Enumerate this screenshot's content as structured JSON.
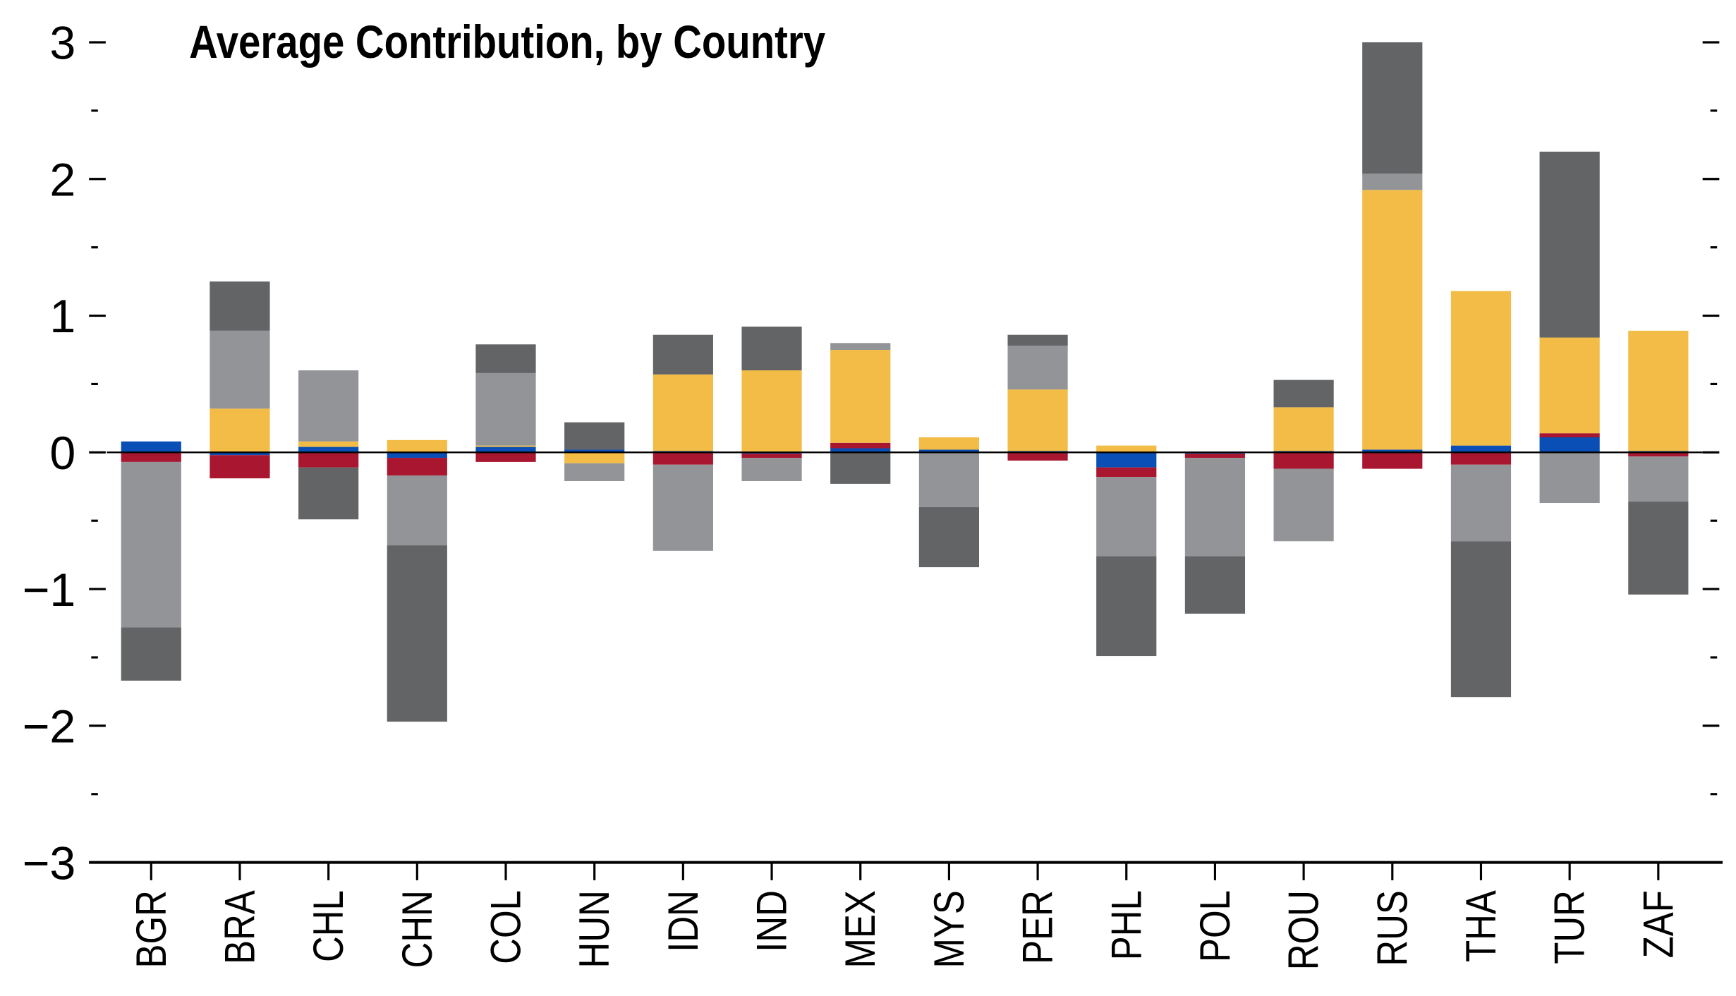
{
  "chart_data": {
    "type": "stacked-bar",
    "title": "Average Contribution, by Country",
    "categories": [
      "BGR",
      "BRA",
      "CHL",
      "CHN",
      "COL",
      "HUN",
      "IDN",
      "IND",
      "MEX",
      "MYS",
      "PER",
      "PHL",
      "POL",
      "ROU",
      "RUS",
      "THA",
      "TUR",
      "ZAF"
    ],
    "series": [
      {
        "color": "#0a4fb5",
        "values": [
          0.08,
          -0.02,
          0.04,
          -0.04,
          0.04,
          0.02,
          0.01,
          -0.01,
          0.03,
          0.02,
          0.01,
          -0.11,
          -0.01,
          0.01,
          0.02,
          0.05,
          0.11,
          0.01
        ]
      },
      {
        "color": "#a8162f",
        "values": [
          -0.07,
          -0.17,
          -0.11,
          -0.13,
          -0.07,
          0,
          -0.09,
          -0.03,
          0.04,
          0,
          -0.06,
          -0.07,
          -0.03,
          -0.12,
          -0.12,
          -0.09,
          0.03,
          -0.03
        ]
      },
      {
        "color": "#f3bc47",
        "values": [
          0,
          0.32,
          0.04,
          0.09,
          0.01,
          -0.08,
          0.56,
          0.6,
          0.68,
          0.09,
          0.45,
          0.05,
          0,
          0.32,
          1.9,
          1.13,
          0.7,
          0.88
        ]
      },
      {
        "color": "#939497",
        "values": [
          -1.21,
          0.57,
          0.52,
          -0.51,
          0.53,
          -0.13,
          -0.63,
          -0.17,
          0.05,
          -0.4,
          0.32,
          -0.58,
          -0.72,
          -0.53,
          0.12,
          -0.56,
          -0.37,
          -0.33
        ]
      },
      {
        "color": "#636466",
        "values": [
          -0.39,
          0.36,
          -0.38,
          -1.29,
          0.21,
          0.2,
          0.29,
          0.32,
          -0.23,
          -0.44,
          0.08,
          -0.73,
          -0.42,
          0.2,
          0.96,
          -1.14,
          1.36,
          -0.68
        ]
      }
    ],
    "ylim": [
      -3,
      3
    ],
    "yticks": [
      {
        "value": -3,
        "label": "−3"
      },
      {
        "value": -2,
        "label": "−2"
      },
      {
        "value": -1,
        "label": "−1"
      },
      0,
      1,
      2,
      3
    ],
    "yminor_ticks": [
      -2.5,
      -1.5,
      -0.5,
      0.5,
      1.5,
      2.5
    ]
  }
}
